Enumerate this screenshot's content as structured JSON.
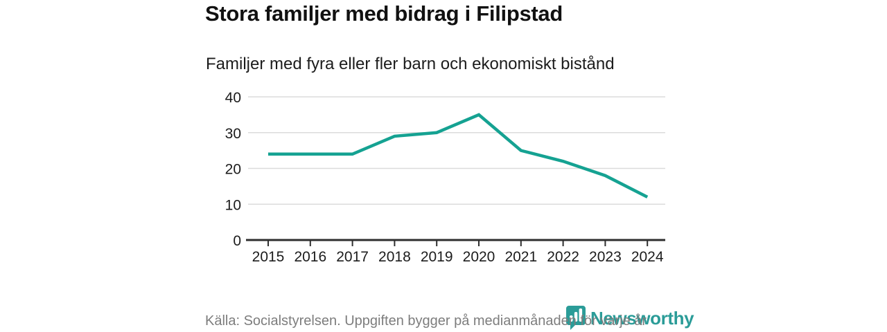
{
  "header": {
    "title": "Stora familjer med bidrag i Filipstad",
    "subtitle": "Familjer med fyra eller fler barn och ekonomiskt bistånd"
  },
  "chart_data": {
    "type": "line",
    "categories": [
      "2015",
      "2016",
      "2017",
      "2018",
      "2019",
      "2020",
      "2021",
      "2022",
      "2023",
      "2024"
    ],
    "values": [
      24,
      24,
      24,
      29,
      30,
      35,
      25,
      22,
      18,
      12
    ],
    "title": "Stora familjer med bidrag i Filipstad",
    "subtitle": "Familjer med fyra eller fler barn och ekonomiskt bistånd",
    "xlabel": "",
    "ylabel": "",
    "ylim": [
      0,
      40
    ],
    "yticks": [
      0,
      10,
      20,
      30,
      40
    ],
    "grid": true,
    "legend": false,
    "line_color": "#15a292"
  },
  "footer": {
    "source": "Källa: Socialstyrelsen. Uppgiften bygger på medianmånaden för varje år",
    "brand": "Newsworthy"
  },
  "icons": {
    "brand_icon": "bar-chart-badge-icon"
  },
  "colors": {
    "accent_teal": "#15a292",
    "brand_teal": "#2b9c98",
    "title_text": "#111111",
    "body_text": "#1c1c1c",
    "muted_text": "#7d7d7d",
    "gridline": "#dbdbdb",
    "axis": "#2e2e2e"
  }
}
